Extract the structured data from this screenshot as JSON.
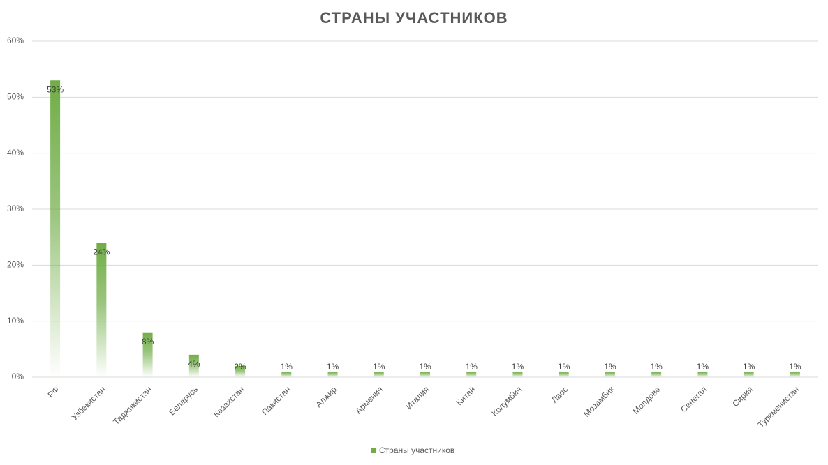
{
  "chart_data": {
    "type": "bar",
    "title": "СТРАНЫ УЧАСТНИКОВ",
    "categories": [
      "РФ",
      "Узбекистан",
      "Таджикистан",
      "Беларусь",
      "Казахстан",
      "Пакистан",
      "Алжир",
      "Армения",
      "Италия",
      "Китай",
      "Колумбия",
      "Лаос",
      "Мозамбик",
      "Молдова",
      "Сенегал",
      "Сирия",
      "Туркменистан"
    ],
    "series": [
      {
        "name": "Страны участников",
        "color": "#70ad47",
        "values": [
          53,
          24,
          8,
          4,
          2,
          1,
          1,
          1,
          1,
          1,
          1,
          1,
          1,
          1,
          1,
          1,
          1
        ],
        "value_labels": [
          "53%",
          "24%",
          "8%",
          "4%",
          "2%",
          "1%",
          "1%",
          "1%",
          "1%",
          "1%",
          "1%",
          "1%",
          "1%",
          "1%",
          "1%",
          "1%",
          "1%"
        ]
      }
    ],
    "ylim": [
      0,
      60
    ],
    "yticks": [
      {
        "value": 0,
        "label": "0%"
      },
      {
        "value": 10,
        "label": "10%"
      },
      {
        "value": 20,
        "label": "20%"
      },
      {
        "value": 30,
        "label": "30%"
      },
      {
        "value": 40,
        "label": "40%"
      },
      {
        "value": 50,
        "label": "50%"
      },
      {
        "value": 60,
        "label": "60%"
      }
    ],
    "grid": true,
    "legend": "bottom"
  }
}
